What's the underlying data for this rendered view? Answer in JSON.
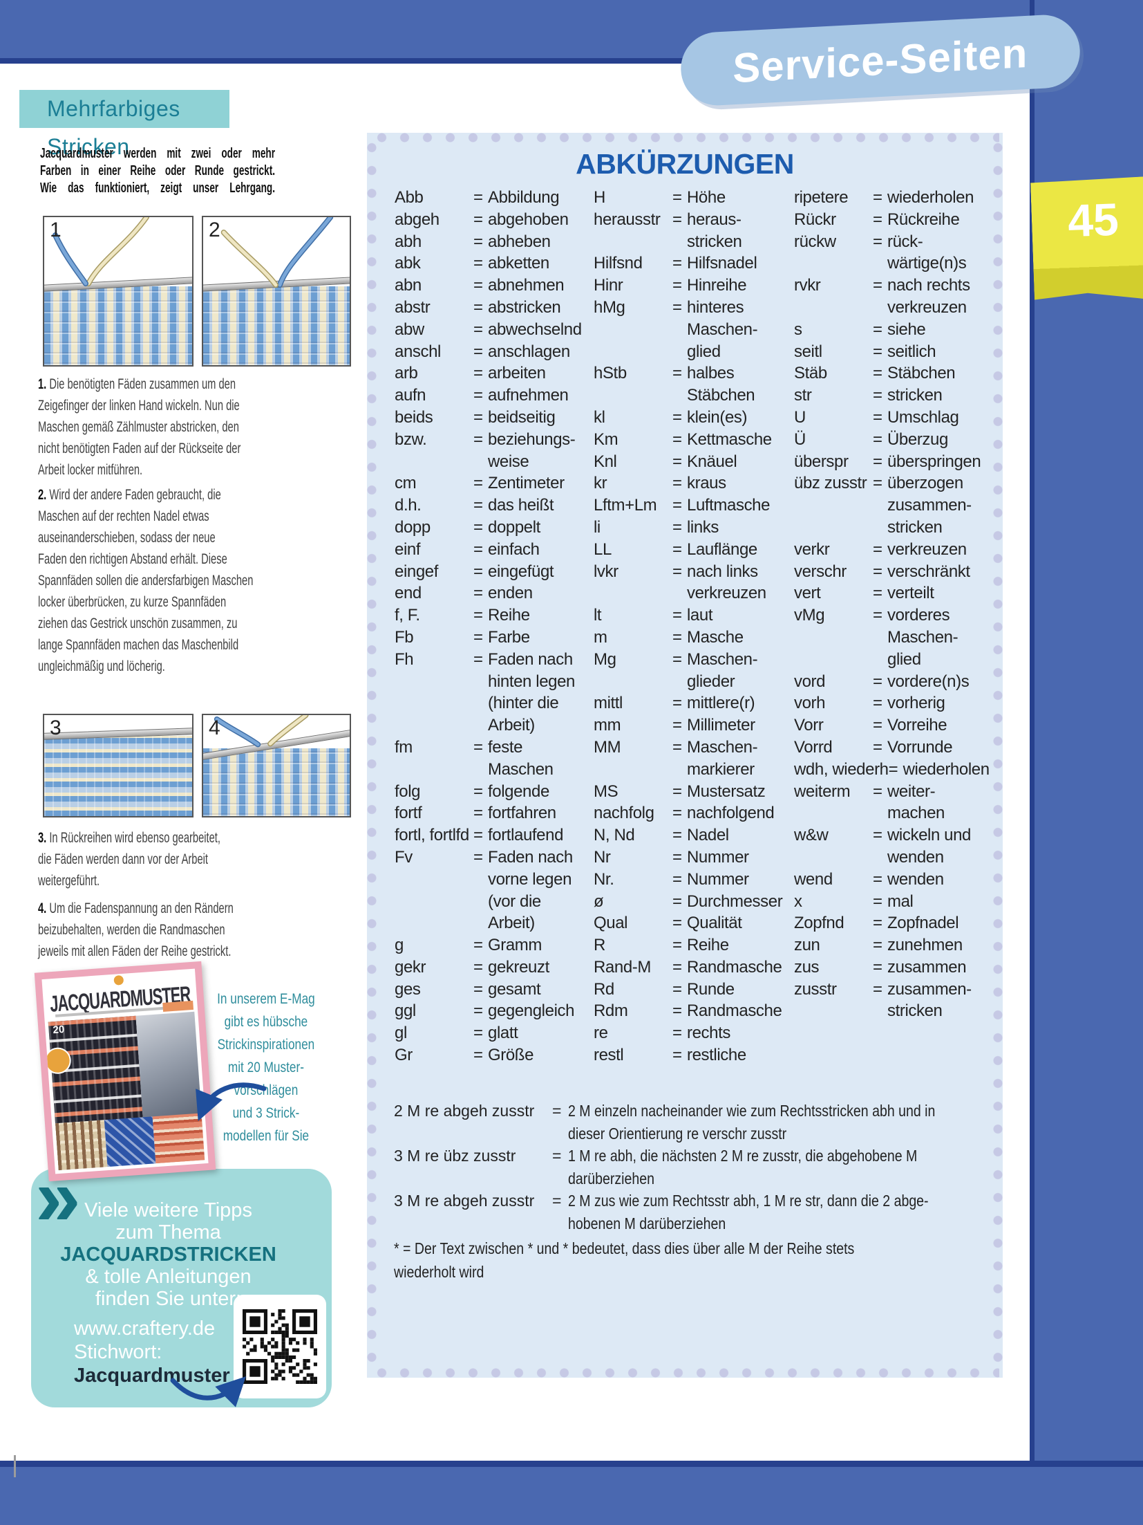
{
  "badge": {
    "label": "Service-Seiten"
  },
  "page_tab": {
    "number": "45"
  },
  "left": {
    "header": "Mehrfarbiges Stricken",
    "intro_lines": [
      "Jacquardmuster werden mit zwei oder mehr",
      "Farben in einer Reihe oder Runde gestrickt.",
      "Wie das funktioniert, zeigt unser Lehrgang."
    ],
    "panels": [
      {
        "number": "1"
      },
      {
        "number": "2"
      },
      {
        "number": "3"
      },
      {
        "number": "4"
      }
    ],
    "paragraphs": [
      {
        "num": "1.",
        "text": "Die benötigten Fäden zusammen um den\nZeigefinger der linken Hand wickeln. Nun die\nMaschen gemäß Zählmuster abstricken, den\nnicht benötigten Faden auf der Rückseite der\nArbeit locker mitführen."
      },
      {
        "num": "2.",
        "text": "Wird der andere Faden gebraucht, die\nMaschen auf der rechten Nadel etwas\nauseinanderschieben, sodass der neue\nFaden den richtigen Abstand erhält. Diese\nSpannfäden sollen die andersfarbigen Maschen\nlocker überbrücken, zu kurze Spannfäden\nziehen das Gestrick unschön zusammen, zu\nlange Spannfäden machen das Maschenbild\nungleichmäßig und löcherig."
      },
      {
        "num": "3.",
        "text": "In Rückreihen wird ebenso gearbeitet,\ndie Fäden werden dann vor der Arbeit\nweitergeführt."
      },
      {
        "num": "4.",
        "text": "Um die Fadenspannung an den Rändern\nbeizubehalten, werden die Randmaschen\njeweils mit allen Fäden der Reihe gestrickt."
      }
    ],
    "emag": {
      "cover_title": "JACQUARDMUSTER",
      "cover_badge": "20",
      "text_lines": [
        "In unserem E-Mag",
        "gibt es hübsche",
        "Strickinspirationen",
        "mit 20 Muster-",
        "vorschlägen",
        "und 3 Strick-",
        "modellen für Sie"
      ]
    },
    "tipbox": {
      "chevron": "»",
      "lines": [
        {
          "t": "Viele weitere Tipps"
        },
        {
          "t": "zum Thema"
        },
        {
          "t": "JACQUARDSTRICKEN",
          "strong": true
        },
        {
          "t": "& tolle Anleitungen"
        },
        {
          "t": "finden Sie unter:"
        }
      ],
      "url": "www.craftery.de",
      "keyword_label": "Stichwort:",
      "keyword": "Jacquardmuster"
    }
  },
  "abbreviations": {
    "title": "ABKÜRZUNGEN",
    "columns": [
      [
        {
          "a": "Abb",
          "v": "Abbildung"
        },
        {
          "a": "abgeh",
          "v": "abgehoben"
        },
        {
          "a": "abh",
          "v": "abheben"
        },
        {
          "a": "abk",
          "v": "abketten"
        },
        {
          "a": "abn",
          "v": "abnehmen"
        },
        {
          "a": "abstr",
          "v": "abstricken"
        },
        {
          "a": "abw",
          "v": "abwechselnd"
        },
        {
          "a": "anschl",
          "v": "anschlagen"
        },
        {
          "a": "arb",
          "v": "arbeiten"
        },
        {
          "a": "aufn",
          "v": "aufnehmen"
        },
        {
          "a": "beids",
          "v": "beidseitig"
        },
        {
          "a": "bzw.",
          "v": "beziehungs-"
        },
        {
          "v": "weise",
          "c": true
        },
        {
          "a": "cm",
          "v": "Zentimeter"
        },
        {
          "a": "d.h.",
          "v": "das heißt"
        },
        {
          "a": "dopp",
          "v": "doppelt"
        },
        {
          "a": "einf",
          "v": "einfach"
        },
        {
          "a": "eingef",
          "v": "eingefügt"
        },
        {
          "a": "end",
          "v": "enden"
        },
        {
          "a": "f, F.",
          "v": "Reihe"
        },
        {
          "a": "Fb",
          "v": "Farbe"
        },
        {
          "a": "Fh",
          "v": "Faden nach"
        },
        {
          "v": "hinten legen",
          "c": true
        },
        {
          "v": "(hinter die",
          "c": true
        },
        {
          "v": "Arbeit)",
          "c": true
        },
        {
          "a": "fm",
          "v": "feste"
        },
        {
          "v": "Maschen",
          "c": true
        },
        {
          "a": "folg",
          "v": "folgende"
        },
        {
          "a": "fortf",
          "v": "fortfahren"
        },
        {
          "a": "fortl, fortlfd",
          "v": "fortlaufend"
        },
        {
          "a": "Fv",
          "v": "Faden nach"
        },
        {
          "v": "vorne legen",
          "c": true
        },
        {
          "v": "(vor die",
          "c": true
        },
        {
          "v": "Arbeit)",
          "c": true
        },
        {
          "a": "g",
          "v": "Gramm"
        },
        {
          "a": "gekr",
          "v": "gekreuzt"
        },
        {
          "a": "ges",
          "v": "gesamt"
        },
        {
          "a": "ggl",
          "v": "gegengleich"
        },
        {
          "a": "gl",
          "v": "glatt"
        },
        {
          "a": "Gr",
          "v": "Größe"
        }
      ],
      [
        {
          "a": "H",
          "v": "Höhe"
        },
        {
          "a": "herausstr",
          "v": "heraus-"
        },
        {
          "v": "stricken",
          "c": true
        },
        {
          "a": "Hilfsnd",
          "v": "Hilfsnadel"
        },
        {
          "a": "Hinr",
          "v": "Hinreihe"
        },
        {
          "a": "hMg",
          "v": "hinteres"
        },
        {
          "v": "Maschen-",
          "c": true
        },
        {
          "v": "glied",
          "c": true
        },
        {
          "a": "hStb",
          "v": "halbes"
        },
        {
          "v": "Stäbchen",
          "c": true
        },
        {
          "a": "kl",
          "v": "klein(es)"
        },
        {
          "a": "Km",
          "v": "Kettmasche"
        },
        {
          "a": "Knl",
          "v": "Knäuel"
        },
        {
          "a": "kr",
          "v": "kraus"
        },
        {
          "a": "Lftm+Lm",
          "v": "Luftmasche"
        },
        {
          "a": "li",
          "v": "links"
        },
        {
          "a": "LL",
          "v": "Lauflänge"
        },
        {
          "a": "lvkr",
          "v": "nach links"
        },
        {
          "v": "verkreuzen",
          "c": true
        },
        {
          "a": "lt",
          "v": "laut"
        },
        {
          "a": "m",
          "v": "Masche"
        },
        {
          "a": "Mg",
          "v": "Maschen-"
        },
        {
          "v": "glieder",
          "c": true
        },
        {
          "a": "mittl",
          "v": "mittlere(r)"
        },
        {
          "a": "mm",
          "v": "Millimeter"
        },
        {
          "a": "MM",
          "v": "Maschen-"
        },
        {
          "v": "markierer",
          "c": true
        },
        {
          "a": "MS",
          "v": "Mustersatz"
        },
        {
          "a": "nachfolg",
          "v": "nachfolgend"
        },
        {
          "a": "N, Nd",
          "v": "Nadel"
        },
        {
          "a": "Nr",
          "v": "Nummer"
        },
        {
          "a": "Nr.",
          "v": "Nummer"
        },
        {
          "a": "ø",
          "v": "Durchmesser"
        },
        {
          "a": "Qual",
          "v": "Qualität"
        },
        {
          "a": "R",
          "v": "Reihe"
        },
        {
          "a": "Rand-M",
          "v": "Randmasche"
        },
        {
          "a": "Rd",
          "v": "Runde"
        },
        {
          "a": "Rdm",
          "v": "Randmasche"
        },
        {
          "a": "re",
          "v": "rechts"
        },
        {
          "a": "restl",
          "v": "restliche"
        }
      ],
      [
        {
          "a": "ripetere",
          "v": "wiederholen"
        },
        {
          "a": "Rückr",
          "v": "Rückreihe"
        },
        {
          "a": "rückw",
          "v": "rück-"
        },
        {
          "v": "wärtige(n)s",
          "c": true
        },
        {
          "a": "rvkr",
          "v": "nach rechts"
        },
        {
          "v": "verkreuzen",
          "c": true
        },
        {
          "a": "s",
          "v": "siehe"
        },
        {
          "a": "seitl",
          "v": "seitlich"
        },
        {
          "a": "Stäb",
          "v": "Stäbchen"
        },
        {
          "a": "str",
          "v": "stricken"
        },
        {
          "a": "U",
          "v": "Umschlag"
        },
        {
          "a": "Ü",
          "v": "Überzug"
        },
        {
          "a": "überspr",
          "v": "überspringen"
        },
        {
          "a": "übz zusstr",
          "v": "überzogen"
        },
        {
          "v": "zusammen-",
          "c": true
        },
        {
          "v": "stricken",
          "c": true
        },
        {
          "a": "verkr",
          "v": "verkreuzen"
        },
        {
          "a": "verschr",
          "v": "verschränkt"
        },
        {
          "a": "vert",
          "v": "verteilt"
        },
        {
          "a": "vMg",
          "v": "vorderes"
        },
        {
          "v": "Maschen-",
          "c": true
        },
        {
          "v": "glied",
          "c": true
        },
        {
          "a": "vord",
          "v": "vordere(n)s"
        },
        {
          "a": "vorh",
          "v": "vorherig"
        },
        {
          "a": "Vorr",
          "v": "Vorreihe"
        },
        {
          "a": "Vorrd",
          "v": "Vorrunde"
        },
        {
          "a": "wdh, wiederh",
          "v": "wiederholen"
        },
        {
          "a": "weiterm",
          "v": "weiter-"
        },
        {
          "v": "machen",
          "c": true
        },
        {
          "a": "w&w",
          "v": "wickeln und"
        },
        {
          "v": "wenden",
          "c": true
        },
        {
          "a": "wend",
          "v": "wenden"
        },
        {
          "a": "x",
          "v": "mal"
        },
        {
          "a": "Zopfnd",
          "v": "Zopfnadel"
        },
        {
          "a": "zun",
          "v": "zunehmen"
        },
        {
          "a": "zus",
          "v": "zusammen"
        },
        {
          "a": "zusstr",
          "v": "zusammen-"
        },
        {
          "v": "stricken",
          "c": true
        }
      ]
    ],
    "special": [
      {
        "term": "2 M re abgeh zusstr",
        "text": "2 M einzeln nacheinander wie zum Rechtsstricken abh und in\ndieser Orientierung re verschr zusstr"
      },
      {
        "term": "3 M re übz zusstr",
        "text": "1 M re abh, die nächsten 2 M re zusstr, die abgehobene M\ndarüberziehen"
      },
      {
        "term": "3 M re abgeh zusstr",
        "text": "2 M zus wie zum Rechtsstr abh, 1 M re str, dann die 2 abge-\nhobenen M darüberziehen"
      }
    ],
    "footnote": "* = Der Text zwischen * und * bedeutet, dass dies über alle M der Reihe stets\nwiederholt wird"
  },
  "colors": {
    "blue": "#4a68b0",
    "navy": "#27418e",
    "panel": "#dde9f5",
    "dot": "#c6c9e5",
    "titleblue": "#1d5cae",
    "teal": "#8fd2d5",
    "tealdark": "#15717f",
    "tealtext": "#1b7e95",
    "tealbox": "#a2dadb",
    "yellow": "#e7e33c",
    "pink": "#eda6ba",
    "arrow": "#1f4e9c"
  }
}
